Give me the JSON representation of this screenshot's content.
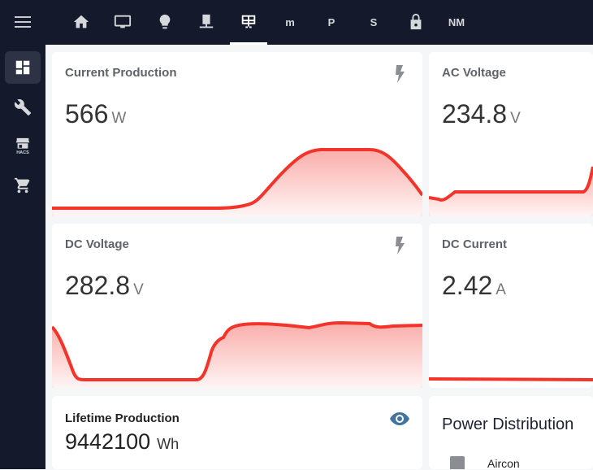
{
  "topbar": {
    "tabs": [
      {
        "icon": "home-icon"
      },
      {
        "icon": "monitor-icon"
      },
      {
        "icon": "lightbulb-icon"
      },
      {
        "icon": "server-network-icon"
      },
      {
        "icon": "solar-panel-icon",
        "active": true
      },
      {
        "label": "m"
      },
      {
        "label": "P"
      },
      {
        "label": "S"
      },
      {
        "icon": "lock-icon"
      },
      {
        "label": "NM"
      }
    ]
  },
  "sidebar": {
    "items": [
      {
        "icon": "dashboard-icon",
        "active": true
      },
      {
        "icon": "wrench-icon"
      },
      {
        "icon": "hacs-icon",
        "label": "HACS"
      },
      {
        "icon": "cart-icon"
      }
    ]
  },
  "cards": {
    "current_production": {
      "title": "Current Production",
      "value": "566",
      "unit": "W"
    },
    "ac_voltage": {
      "title": "AC Voltage",
      "value": "234.8",
      "unit": "V"
    },
    "dc_voltage": {
      "title": "DC Voltage",
      "value": "282.8",
      "unit": "V"
    },
    "dc_current": {
      "title": "DC Current",
      "value": "2.42",
      "unit": "A"
    },
    "lifetime_production": {
      "title": "Lifetime Production",
      "value": "9442100",
      "unit": "Wh"
    },
    "power_distribution": {
      "title": "Power Distribution",
      "items": [
        {
          "label": "Aircon"
        }
      ]
    }
  },
  "colors": {
    "line": "#f2342b",
    "accent": "#44739e",
    "bar": "#141a2b"
  }
}
